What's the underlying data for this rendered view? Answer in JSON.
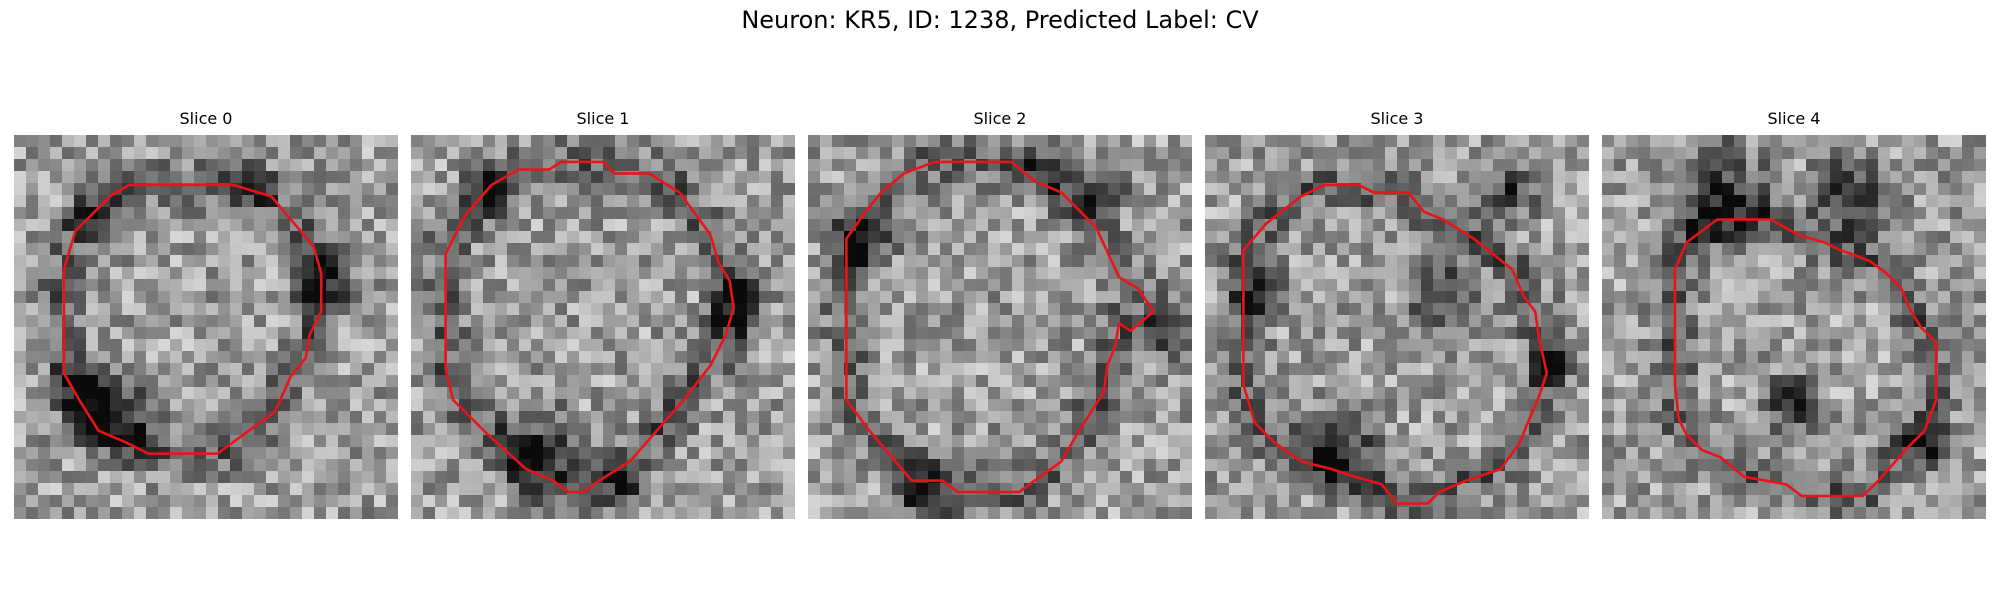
{
  "title": "Neuron: KR5, ID: 1238, Predicted Label: CV",
  "panels": [
    {
      "label": "Slice 0",
      "seed": 11,
      "contour": [
        [
          0.3,
          0.13
        ],
        [
          0.57,
          0.13
        ],
        [
          0.67,
          0.16
        ],
        [
          0.78,
          0.29
        ],
        [
          0.8,
          0.36
        ],
        [
          0.8,
          0.46
        ],
        [
          0.77,
          0.52
        ],
        [
          0.76,
          0.58
        ],
        [
          0.72,
          0.63
        ],
        [
          0.68,
          0.72
        ],
        [
          0.53,
          0.83
        ],
        [
          0.35,
          0.83
        ],
        [
          0.29,
          0.8
        ],
        [
          0.22,
          0.77
        ],
        [
          0.17,
          0.69
        ],
        [
          0.13,
          0.62
        ],
        [
          0.13,
          0.35
        ],
        [
          0.16,
          0.25
        ],
        [
          0.2,
          0.21
        ],
        [
          0.25,
          0.16
        ]
      ],
      "dark": [
        [
          0.28,
          0.72,
          0.1
        ],
        [
          0.18,
          0.66,
          0.07
        ],
        [
          0.8,
          0.38,
          0.07
        ],
        [
          0.22,
          0.22,
          0.06
        ],
        [
          0.62,
          0.12,
          0.05
        ]
      ]
    },
    {
      "label": "Slice 1",
      "seed": 23,
      "contour": [
        [
          0.28,
          0.09
        ],
        [
          0.36,
          0.09
        ],
        [
          0.39,
          0.07
        ],
        [
          0.5,
          0.07
        ],
        [
          0.53,
          0.1
        ],
        [
          0.62,
          0.1
        ],
        [
          0.7,
          0.15
        ],
        [
          0.78,
          0.26
        ],
        [
          0.8,
          0.33
        ],
        [
          0.83,
          0.38
        ],
        [
          0.84,
          0.45
        ],
        [
          0.82,
          0.52
        ],
        [
          0.78,
          0.6
        ],
        [
          0.71,
          0.69
        ],
        [
          0.64,
          0.77
        ],
        [
          0.57,
          0.85
        ],
        [
          0.49,
          0.9
        ],
        [
          0.45,
          0.93
        ],
        [
          0.41,
          0.93
        ],
        [
          0.37,
          0.9
        ],
        [
          0.3,
          0.87
        ],
        [
          0.2,
          0.78
        ],
        [
          0.11,
          0.69
        ],
        [
          0.09,
          0.61
        ],
        [
          0.09,
          0.31
        ],
        [
          0.14,
          0.21
        ],
        [
          0.21,
          0.13
        ]
      ],
      "dark": [
        [
          0.34,
          0.82,
          0.1
        ],
        [
          0.85,
          0.45,
          0.07
        ],
        [
          0.2,
          0.15,
          0.06
        ],
        [
          0.55,
          0.9,
          0.06
        ]
      ]
    },
    {
      "label": "Slice 2",
      "seed": 37,
      "contour": [
        [
          0.25,
          0.1
        ],
        [
          0.33,
          0.07
        ],
        [
          0.53,
          0.07
        ],
        [
          0.59,
          0.12
        ],
        [
          0.66,
          0.15
        ],
        [
          0.75,
          0.24
        ],
        [
          0.81,
          0.37
        ],
        [
          0.86,
          0.4
        ],
        [
          0.9,
          0.46
        ],
        [
          0.84,
          0.51
        ],
        [
          0.81,
          0.49
        ],
        [
          0.8,
          0.55
        ],
        [
          0.78,
          0.6
        ],
        [
          0.77,
          0.67
        ],
        [
          0.7,
          0.78
        ],
        [
          0.66,
          0.85
        ],
        [
          0.59,
          0.9
        ],
        [
          0.55,
          0.93
        ],
        [
          0.39,
          0.93
        ],
        [
          0.35,
          0.9
        ],
        [
          0.27,
          0.9
        ],
        [
          0.16,
          0.77
        ],
        [
          0.1,
          0.69
        ],
        [
          0.1,
          0.27
        ],
        [
          0.15,
          0.2
        ],
        [
          0.19,
          0.15
        ]
      ],
      "dark": [
        [
          0.15,
          0.28,
          0.07
        ],
        [
          0.75,
          0.15,
          0.07
        ],
        [
          0.3,
          0.92,
          0.07
        ],
        [
          0.95,
          0.52,
          0.05
        ],
        [
          0.62,
          0.08,
          0.05
        ]
      ]
    },
    {
      "label": "Slice 3",
      "seed": 53,
      "contour": [
        [
          0.25,
          0.16
        ],
        [
          0.31,
          0.13
        ],
        [
          0.4,
          0.13
        ],
        [
          0.44,
          0.15
        ],
        [
          0.53,
          0.15
        ],
        [
          0.57,
          0.2
        ],
        [
          0.62,
          0.22
        ],
        [
          0.7,
          0.27
        ],
        [
          0.8,
          0.35
        ],
        [
          0.83,
          0.42
        ],
        [
          0.86,
          0.46
        ],
        [
          0.87,
          0.53
        ],
        [
          0.89,
          0.62
        ],
        [
          0.87,
          0.68
        ],
        [
          0.84,
          0.75
        ],
        [
          0.82,
          0.8
        ],
        [
          0.77,
          0.87
        ],
        [
          0.68,
          0.9
        ],
        [
          0.61,
          0.93
        ],
        [
          0.58,
          0.96
        ],
        [
          0.5,
          0.96
        ],
        [
          0.46,
          0.91
        ],
        [
          0.39,
          0.89
        ],
        [
          0.33,
          0.87
        ],
        [
          0.25,
          0.85
        ],
        [
          0.18,
          0.8
        ],
        [
          0.13,
          0.75
        ],
        [
          0.1,
          0.65
        ],
        [
          0.1,
          0.3
        ],
        [
          0.16,
          0.23
        ]
      ],
      "dark": [
        [
          0.35,
          0.82,
          0.1
        ],
        [
          0.62,
          0.42,
          0.08
        ],
        [
          0.15,
          0.4,
          0.06
        ],
        [
          0.8,
          0.15,
          0.06
        ],
        [
          0.9,
          0.6,
          0.05
        ]
      ]
    },
    {
      "label": "Slice 4",
      "seed": 71,
      "contour": [
        [
          0.3,
          0.22
        ],
        [
          0.44,
          0.22
        ],
        [
          0.51,
          0.26
        ],
        [
          0.58,
          0.28
        ],
        [
          0.62,
          0.3
        ],
        [
          0.65,
          0.31
        ],
        [
          0.7,
          0.33
        ],
        [
          0.74,
          0.36
        ],
        [
          0.78,
          0.4
        ],
        [
          0.8,
          0.45
        ],
        [
          0.83,
          0.5
        ],
        [
          0.87,
          0.54
        ],
        [
          0.87,
          0.69
        ],
        [
          0.84,
          0.77
        ],
        [
          0.79,
          0.82
        ],
        [
          0.72,
          0.9
        ],
        [
          0.68,
          0.94
        ],
        [
          0.52,
          0.94
        ],
        [
          0.48,
          0.91
        ],
        [
          0.37,
          0.89
        ],
        [
          0.31,
          0.84
        ],
        [
          0.26,
          0.82
        ],
        [
          0.22,
          0.78
        ],
        [
          0.2,
          0.74
        ],
        [
          0.19,
          0.65
        ],
        [
          0.19,
          0.35
        ],
        [
          0.22,
          0.28
        ]
      ],
      "dark": [
        [
          0.3,
          0.15,
          0.12
        ],
        [
          0.65,
          0.15,
          0.1
        ],
        [
          0.5,
          0.7,
          0.07
        ],
        [
          0.85,
          0.8,
          0.06
        ]
      ]
    }
  ]
}
